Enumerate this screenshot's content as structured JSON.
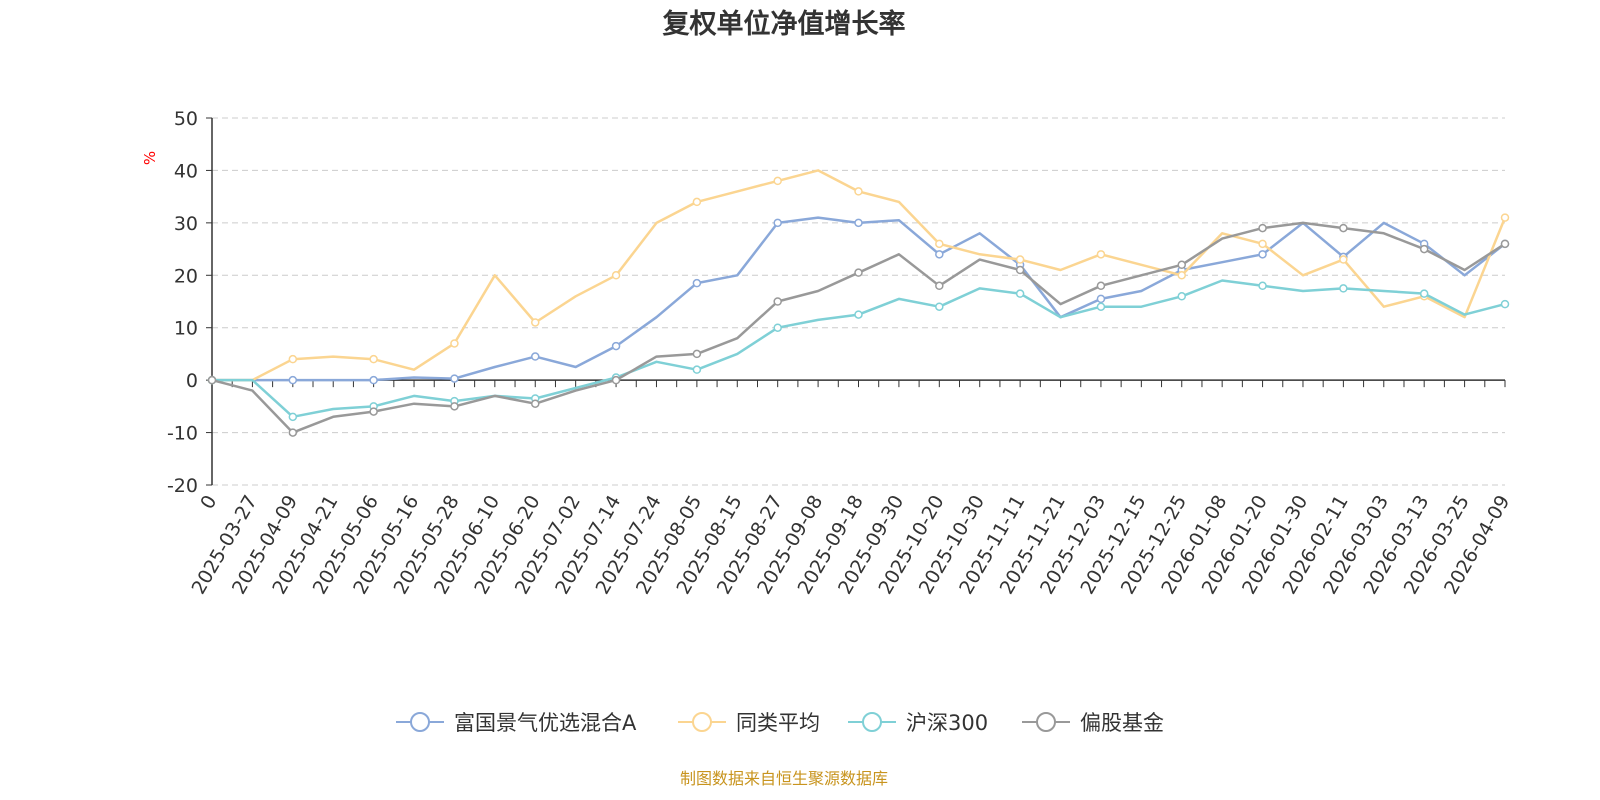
{
  "title": "复权单位净值增长率",
  "source_note": "制图数据来自恒生聚源数据库",
  "chart_data": {
    "type": "line",
    "title": "复权单位净值增长率",
    "ylabel": "%",
    "ylim": [
      -20,
      50
    ],
    "yticks": [
      -20,
      -10,
      0,
      10,
      20,
      30,
      40,
      50
    ],
    "grid": true,
    "legend_position": "bottom",
    "x_tick_labels": [
      "0",
      "2025-03-27",
      "2025-04-09",
      "2025-04-21",
      "2025-05-06",
      "2025-05-16",
      "2025-05-28",
      "2025-06-10",
      "2025-06-20",
      "2025-07-02",
      "2025-07-14",
      "2025-07-24",
      "2025-08-05",
      "2025-08-15",
      "2025-08-27",
      "2025-09-08",
      "2025-09-18",
      "2025-09-30",
      "2025-10-20",
      "2025-10-30",
      "2025-11-11",
      "2025-11-21",
      "2025-12-03",
      "2025-12-15",
      "2025-12-25",
      "2026-01-08",
      "2026-01-20",
      "2026-01-30",
      "2026-02-11",
      "2026-03-03",
      "2026-03-13",
      "2026-03-25",
      "2026-04-09"
    ],
    "series": [
      {
        "name": "富国景气优选混合A",
        "color": "#8aa8d9",
        "values": [
          0,
          0,
          0,
          0,
          0,
          0.5,
          0.3,
          2.5,
          4.5,
          2.5,
          6.5,
          12,
          18.5,
          20,
          30,
          31,
          30,
          30.5,
          24,
          28,
          22,
          12,
          15.5,
          17,
          21,
          22.5,
          24,
          30,
          23.5,
          30,
          26,
          20,
          26
        ]
      },
      {
        "name": "同类平均",
        "color": "#fbd591",
        "values": [
          0,
          0,
          4,
          4.5,
          4,
          2,
          7,
          20,
          11,
          16,
          20,
          30,
          34,
          36,
          38,
          40,
          36,
          34,
          26,
          24,
          23,
          21,
          24,
          22,
          20,
          28,
          26,
          20,
          23,
          14,
          16,
          12,
          31
        ]
      },
      {
        "name": "沪深300",
        "color": "#7fd0d6",
        "values": [
          0,
          0,
          -7,
          -5.5,
          -5,
          -3,
          -4,
          -3,
          -3.5,
          -1.5,
          0.5,
          3.5,
          2,
          5,
          10,
          11.5,
          12.5,
          15.5,
          14,
          17.5,
          16.5,
          12,
          14,
          14,
          16,
          19,
          18,
          17,
          17.5,
          17,
          16.5,
          12.5,
          14.5
        ]
      },
      {
        "name": "偏股基金",
        "color": "#999999",
        "values": [
          0,
          -2,
          -10,
          -7,
          -6,
          -4.5,
          -5,
          -3,
          -4.5,
          -2,
          0,
          4.5,
          5,
          8,
          15,
          17,
          20.5,
          24,
          18,
          23,
          21,
          14.5,
          18,
          20,
          22,
          27,
          29,
          30,
          29,
          28,
          25,
          21,
          26
        ]
      }
    ]
  }
}
